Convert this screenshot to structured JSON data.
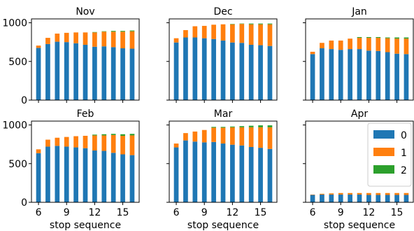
{
  "chart_data": {
    "type": "bar",
    "stacked": true,
    "layout": "2x3 small multiples, shared x and y axes",
    "categories": [
      6,
      7,
      8,
      9,
      10,
      11,
      12,
      13,
      14,
      15,
      16
    ],
    "x_ticks": [
      6,
      9,
      12,
      15
    ],
    "y_ticks": [
      0,
      500,
      1000
    ],
    "ylim": [
      0,
      1050
    ],
    "xlabel": "stop sequence",
    "ylabel": "",
    "grid": false,
    "legend": {
      "placement": "upper-right of the Apr panel",
      "entries": [
        "0",
        "1",
        "2"
      ]
    },
    "series_colors": {
      "0": "#1f77b4",
      "1": "#ff7f0e",
      "2": "#2ca02c"
    },
    "panels": [
      {
        "title": "Nov",
        "series": [
          {
            "name": "0",
            "values": [
              675,
              725,
              755,
              750,
              735,
              715,
              690,
              695,
              685,
              670,
              665
            ]
          },
          {
            "name": "1",
            "values": [
              30,
              80,
              105,
              120,
              140,
              160,
              185,
              190,
              200,
              215,
              225
            ]
          },
          {
            "name": "2",
            "values": [
              0,
              0,
              0,
              0,
              0,
              0,
              5,
              5,
              10,
              10,
              10
            ]
          }
        ]
      },
      {
        "title": "Dec",
        "series": [
          {
            "name": "0",
            "values": [
              745,
              810,
              810,
              800,
              790,
              770,
              745,
              740,
              715,
              710,
              700
            ]
          },
          {
            "name": "1",
            "values": [
              55,
              95,
              145,
              160,
              185,
              210,
              235,
              245,
              265,
              270,
              280
            ]
          },
          {
            "name": "2",
            "values": [
              0,
              0,
              0,
              0,
              0,
              0,
              5,
              5,
              10,
              10,
              10
            ]
          }
        ]
      },
      {
        "title": "Jan",
        "series": [
          {
            "name": "0",
            "values": [
              595,
              670,
              660,
              650,
              660,
              660,
              640,
              635,
              620,
              600,
              595
            ]
          },
          {
            "name": "1",
            "values": [
              30,
              70,
              110,
              120,
              135,
              145,
              165,
              170,
              180,
              195,
              200
            ]
          },
          {
            "name": "2",
            "values": [
              0,
              0,
              0,
              0,
              0,
              10,
              10,
              10,
              10,
              15,
              15
            ]
          }
        ]
      },
      {
        "title": "Feb",
        "series": [
          {
            "name": "0",
            "values": [
              635,
              720,
              730,
              720,
              710,
              700,
              670,
              665,
              640,
              620,
              610
            ]
          },
          {
            "name": "1",
            "values": [
              50,
              90,
              105,
              125,
              145,
              160,
              195,
              200,
              230,
              240,
              255
            ]
          },
          {
            "name": "2",
            "values": [
              0,
              0,
              0,
              0,
              0,
              0,
              10,
              15,
              15,
              20,
              20
            ]
          }
        ]
      },
      {
        "title": "Mar",
        "series": [
          {
            "name": "0",
            "values": [
              710,
              800,
              785,
              775,
              780,
              760,
              745,
              735,
              715,
              705,
              690
            ]
          },
          {
            "name": "1",
            "values": [
              50,
              95,
              130,
              160,
              185,
              205,
              225,
              235,
              255,
              265,
              280
            ]
          },
          {
            "name": "2",
            "values": [
              0,
              0,
              0,
              0,
              10,
              10,
              10,
              15,
              20,
              25,
              25
            ]
          }
        ]
      },
      {
        "title": "Apr",
        "series": [
          {
            "name": "0",
            "values": [
              95,
              100,
              100,
              100,
              100,
              100,
              95,
              95,
              95,
              95,
              95
            ]
          },
          {
            "name": "1",
            "values": [
              5,
              10,
              15,
              20,
              20,
              20,
              25,
              25,
              25,
              25,
              25
            ]
          },
          {
            "name": "2",
            "values": [
              0,
              0,
              0,
              0,
              0,
              0,
              0,
              0,
              0,
              0,
              0
            ]
          }
        ]
      }
    ]
  }
}
